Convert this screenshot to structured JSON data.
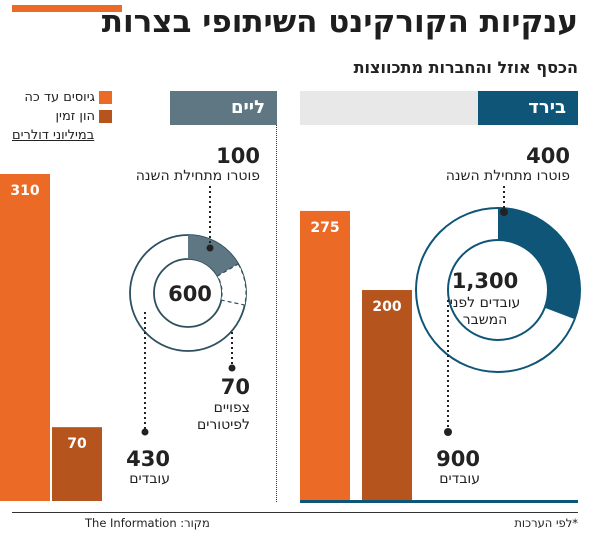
{
  "title": "ענקיות הקורקינט השיתופי בצרות",
  "subtitle": "הכסף אוזל והחברות מתכווצות",
  "legend": {
    "raised_label": "גיוסים עד כה",
    "valuation_label": "הון זמין",
    "unit_label": "במיליוני דולרים"
  },
  "panels": {
    "bird": {
      "name": "בירד",
      "laid_off_value": "400",
      "laid_off_caption": "פוטרו מתחילת השנה",
      "employees_before_value": "1,300",
      "employees_before_caption_1": "עובדים לפני",
      "employees_before_caption_2": "המשבר",
      "employees_now_value": "900",
      "employees_now_caption": "עובדים"
    },
    "lime": {
      "name": "ליים",
      "laid_off_value": "100",
      "laid_off_caption": "פוטרו מתחילת השנה",
      "employees_before_value": "600",
      "expected_value": "70",
      "expected_caption_1": "צפויים",
      "expected_caption_2": "לפיטורים",
      "employees_now_value": "430",
      "employees_now_caption": "עובדים"
    }
  },
  "footer": {
    "note": "*לפי הערכות",
    "source": "מקור: The Information"
  },
  "colors": {
    "orange": "#ea6a26",
    "brown": "#b5541c",
    "bird_blue": "#0f5577",
    "lime_gray": "#5f7783",
    "teal_dark": "#2e4f5f"
  },
  "chart_data": [
    {
      "type": "bar",
      "company": "בירד",
      "categories": [
        "גיוסים עד כה",
        "הון זמין"
      ],
      "values": [
        275,
        200
      ],
      "ylabel": "במיליוני דולרים"
    },
    {
      "type": "bar",
      "company": "ליים",
      "categories": [
        "גיוסים עד כה",
        "הון זמין"
      ],
      "values": [
        310,
        70
      ],
      "ylabel": "במיליוני דולרים"
    },
    {
      "type": "pie",
      "company": "בירד",
      "total": 1300,
      "segments": [
        {
          "label": "פוטרו מתחילת השנה",
          "value": 400
        },
        {
          "label": "עובדים",
          "value": 900
        }
      ]
    },
    {
      "type": "pie",
      "company": "ליים",
      "total": 600,
      "segments": [
        {
          "label": "פוטרו מתחילת השנה",
          "value": 100
        },
        {
          "label": "צפויים לפיטורים",
          "value": 70
        },
        {
          "label": "עובדים",
          "value": 430
        }
      ]
    }
  ]
}
